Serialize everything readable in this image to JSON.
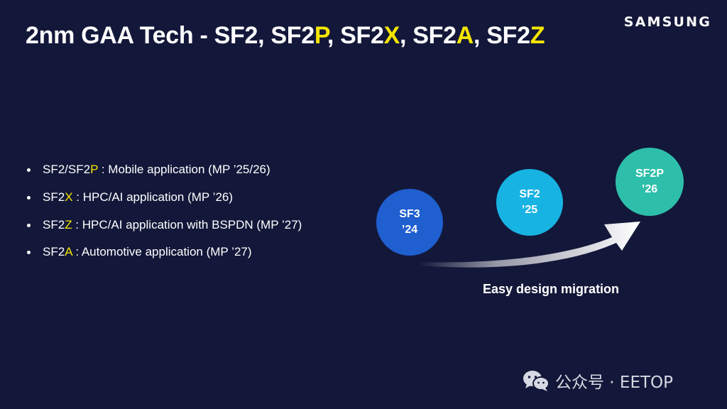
{
  "title": {
    "prefix": "2nm GAA Tech - SF2, SF2",
    "p": "P",
    "sep1": ", SF2",
    "x": "X",
    "sep2": ", SF2",
    "a": "A",
    "sep3": ", SF2",
    "z": "Z"
  },
  "logo": "SAMSUNG",
  "bullets": [
    {
      "pre": "SF2/SF2",
      "hl": "P",
      "post": " : Mobile application (MP ’25/26)"
    },
    {
      "pre": "SF2",
      "hl": "X",
      "post": " : HPC/AI application (MP ’26)"
    },
    {
      "pre": "SF2",
      "hl": "Z",
      "post": " : HPC/AI application with BSPDN (MP ’27)"
    },
    {
      "pre": "SF2",
      "hl": "A",
      "post": " : Automotive application (MP ’27)"
    }
  ],
  "roadmap": [
    {
      "name": "SF3",
      "year": "’24",
      "color": "#1f5fd0"
    },
    {
      "name": "SF2",
      "year": "’25",
      "color": "#17b3e3"
    },
    {
      "name": "SF2P",
      "year": "’26",
      "color": "#2dbfa9"
    }
  ],
  "caption": "Easy design migration",
  "watermark": {
    "text": "公众号 · EETOP",
    "icon": "wechat-icon"
  },
  "colors": {
    "background": "#13183a",
    "highlight": "#f5e600"
  }
}
